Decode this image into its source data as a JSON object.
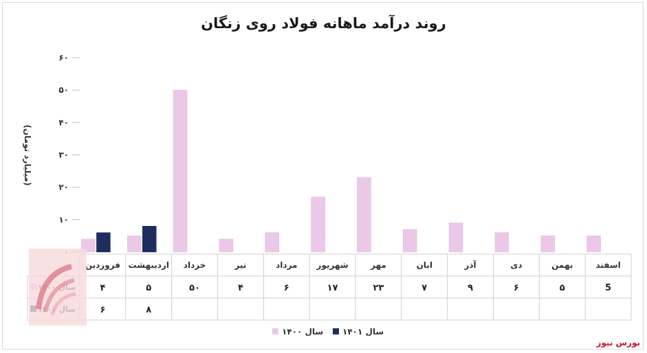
{
  "title": "روند درآمد ماهانه فولاد روی زنگان",
  "source_label": "بورس نیوز",
  "chart_data": {
    "type": "bar",
    "title": "روند درآمد ماهانه فولاد روی زنگان",
    "ylabel": "(میلیارد تومان)",
    "ylim": [
      0,
      60
    ],
    "yticks": [
      "۰",
      "۱۰",
      "۲۰",
      "۳۰",
      "۴۰",
      "۵۰",
      "۶۰"
    ],
    "categories": [
      "فروردین",
      "اردیبهشت",
      "خرداد",
      "تیر",
      "مرداد",
      "شهریور",
      "مهر",
      "ابان",
      "آذر",
      "دی",
      "بهمن",
      "اسفند"
    ],
    "series": [
      {
        "name": "سال ۱۴۰۰",
        "color": "#ecc8e8",
        "values": [
          4,
          5,
          50,
          4,
          6,
          17,
          23,
          7,
          9,
          6,
          5,
          5
        ],
        "labels": [
          "۴",
          "۵",
          "۵۰",
          "۴",
          "۶",
          "۱۷",
          "۲۳",
          "۷",
          "۹",
          "۶",
          "۵",
          "5"
        ]
      },
      {
        "name": "سال ۱۴۰۱",
        "color": "#1c2d5e",
        "values": [
          6,
          8,
          null,
          null,
          null,
          null,
          null,
          null,
          null,
          null,
          null,
          null
        ],
        "labels": [
          "۶",
          "۸",
          "",
          "",
          "",
          "",
          "",
          "",
          "",
          "",
          "",
          ""
        ]
      }
    ],
    "grid": false,
    "legend": "bottom"
  }
}
